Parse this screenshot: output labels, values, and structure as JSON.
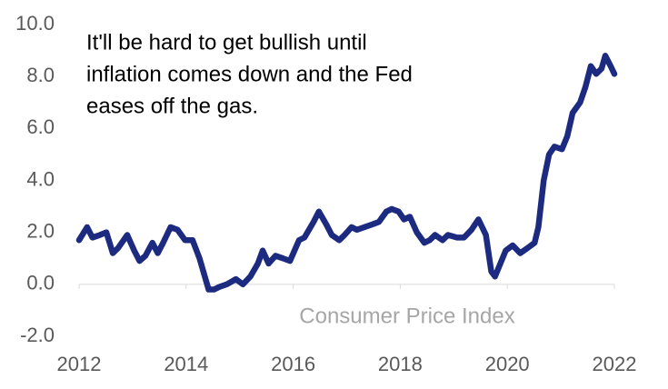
{
  "chart_data": {
    "type": "line",
    "annotation": [
      "It'll be hard to get bullish until",
      "inflation comes down and the Fed",
      "eases off the gas."
    ],
    "series": [
      {
        "name": "Consumer Price Index",
        "color": "#1c2a80",
        "x": [
          2012.0,
          2012.15,
          2012.25,
          2012.39,
          2012.51,
          2012.63,
          2012.73,
          2012.9,
          2013.03,
          2013.13,
          2013.24,
          2013.37,
          2013.47,
          2013.57,
          2013.71,
          2013.84,
          2013.98,
          2014.12,
          2014.25,
          2014.42,
          2014.52,
          2014.62,
          2014.76,
          2014.93,
          2015.06,
          2015.2,
          2015.34,
          2015.43,
          2015.54,
          2015.67,
          2015.81,
          2015.94,
          2016.11,
          2016.21,
          2016.38,
          2016.48,
          2016.62,
          2016.72,
          2016.86,
          2016.96,
          2017.09,
          2017.19,
          2017.33,
          2017.47,
          2017.6,
          2017.74,
          2017.84,
          2017.97,
          2018.07,
          2018.18,
          2018.31,
          2018.45,
          2018.55,
          2018.65,
          2018.79,
          2018.89,
          2019.06,
          2019.19,
          2019.33,
          2019.46,
          2019.6,
          2019.7,
          2019.77,
          2019.87,
          2019.97,
          2020.1,
          2020.24,
          2020.38,
          2020.51,
          2020.58,
          2020.68,
          2020.78,
          2020.88,
          2021.02,
          2021.12,
          2021.22,
          2021.36,
          2021.46,
          2021.56,
          2021.66,
          2021.76,
          2021.83,
          2021.93,
          2022.0
        ],
        "values": [
          1.7,
          2.2,
          1.8,
          1.9,
          2.0,
          1.2,
          1.4,
          1.9,
          1.3,
          0.9,
          1.1,
          1.6,
          1.2,
          1.6,
          2.2,
          2.1,
          1.7,
          1.7,
          1.0,
          -0.2,
          -0.2,
          -0.1,
          0.0,
          0.2,
          0.0,
          0.3,
          0.8,
          1.3,
          0.8,
          1.1,
          1.0,
          0.9,
          1.7,
          1.8,
          2.4,
          2.8,
          2.3,
          1.9,
          1.7,
          1.9,
          2.2,
          2.1,
          2.2,
          2.3,
          2.4,
          2.8,
          2.9,
          2.8,
          2.5,
          2.6,
          2.0,
          1.6,
          1.7,
          1.9,
          1.7,
          1.9,
          1.8,
          1.8,
          2.1,
          2.5,
          1.9,
          0.5,
          0.3,
          0.8,
          1.3,
          1.5,
          1.2,
          1.4,
          1.6,
          2.2,
          4.0,
          5.0,
          5.3,
          5.2,
          5.7,
          6.6,
          7.0,
          7.6,
          8.4,
          8.1,
          8.3,
          8.8,
          8.4,
          8.1
        ]
      }
    ],
    "xlim": [
      2012,
      2022
    ],
    "xticks": [
      2012,
      2014,
      2016,
      2018,
      2020,
      2022
    ],
    "ylim": [
      -2,
      10
    ],
    "yticks": [
      {
        "value": -2,
        "label": "-2.0"
      },
      {
        "value": 0,
        "label": "0.0"
      },
      {
        "value": 2,
        "label": "2.0"
      },
      {
        "value": 4,
        "label": "4.0"
      },
      {
        "value": 6,
        "label": "6.0"
      },
      {
        "value": 8,
        "label": "8.0"
      },
      {
        "value": 10,
        "label": "10.0"
      }
    ]
  }
}
